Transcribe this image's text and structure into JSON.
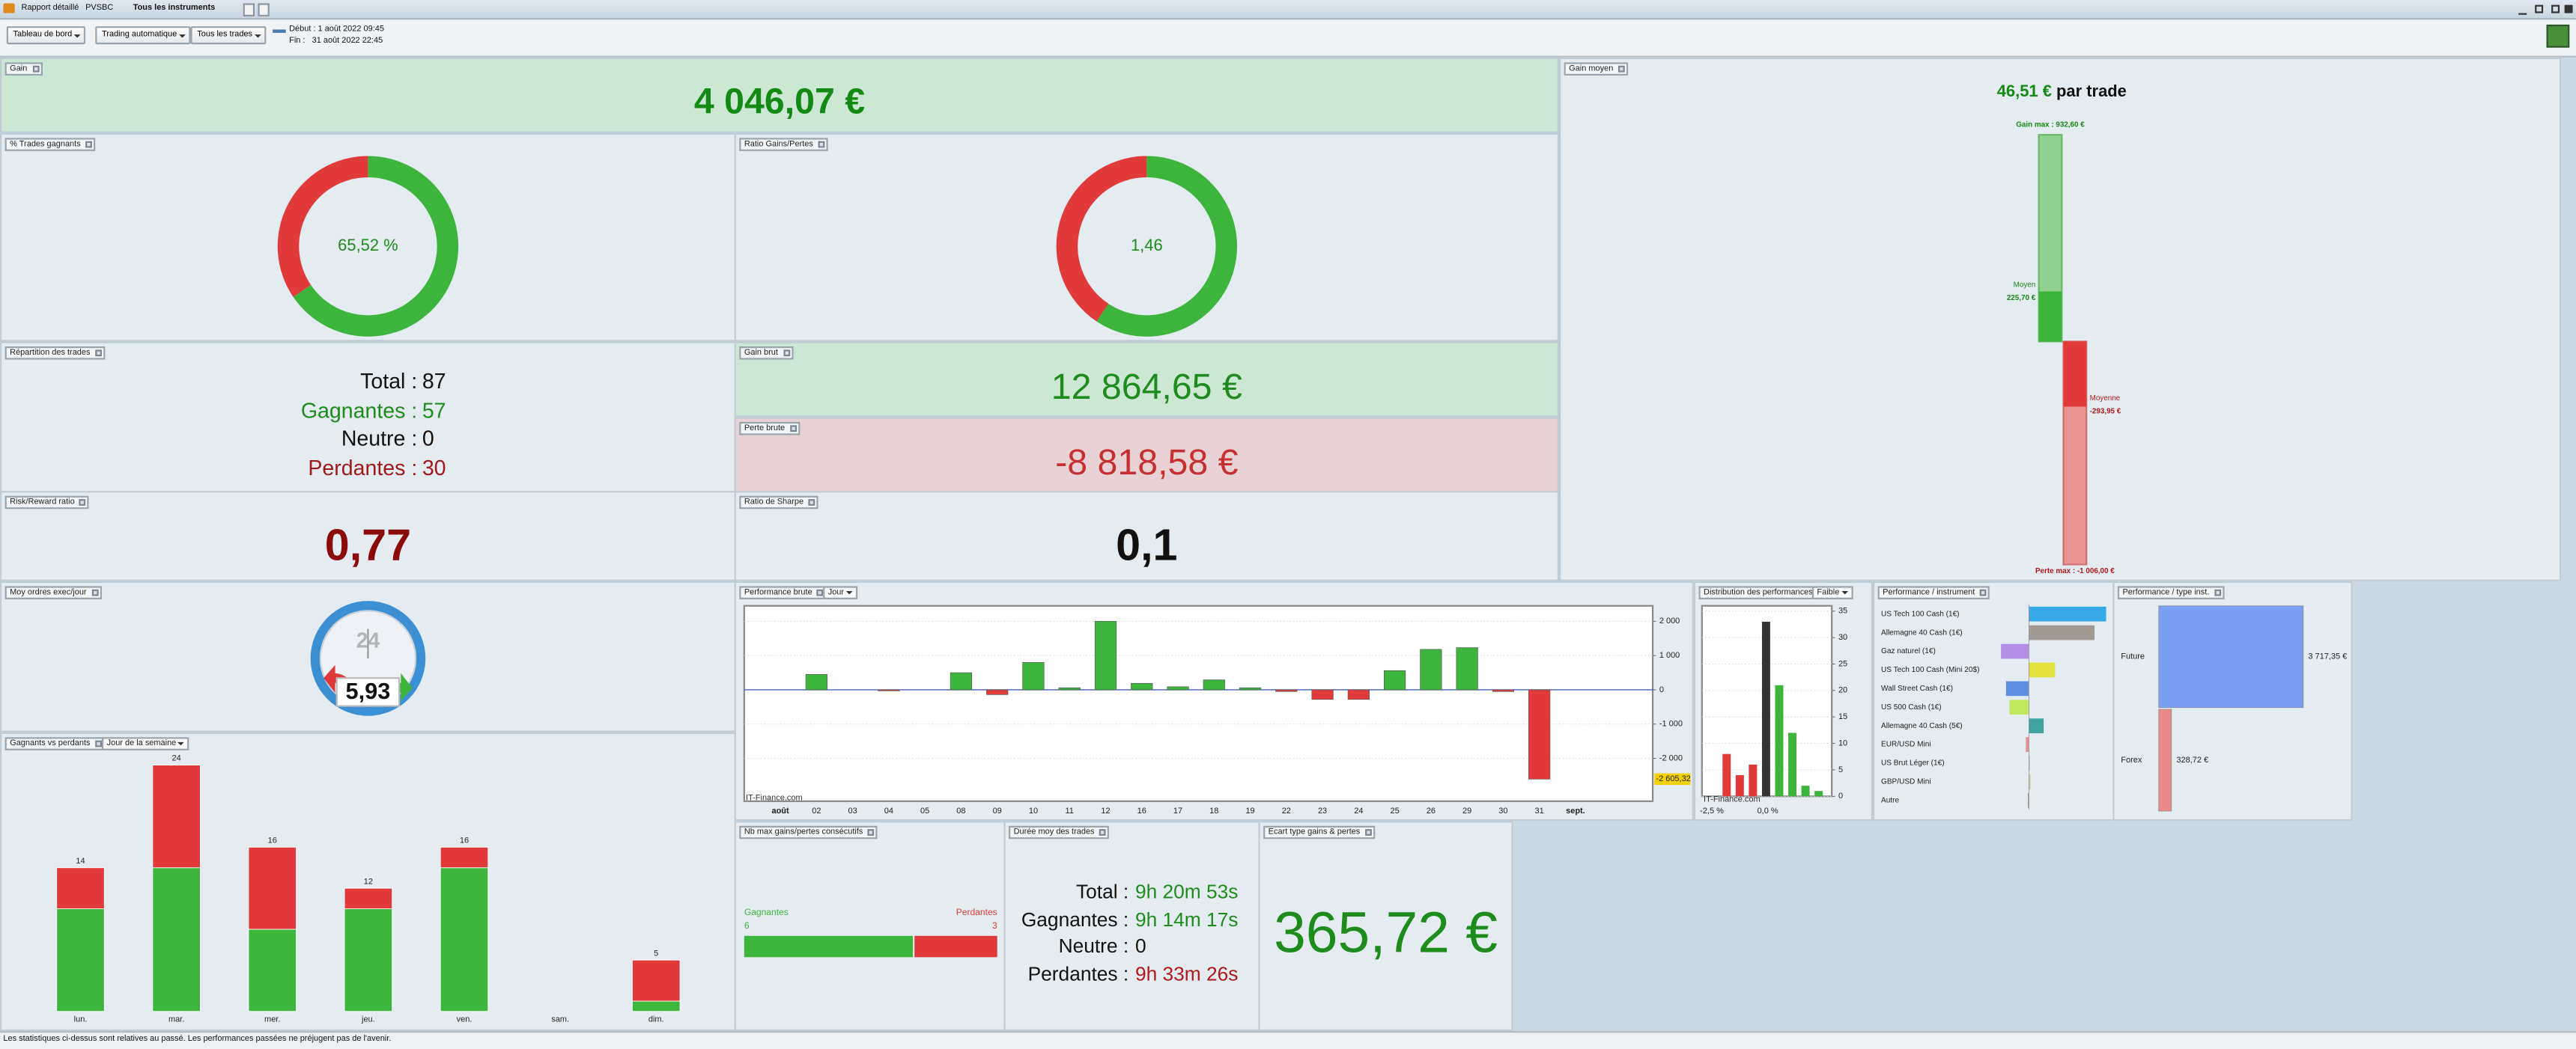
{
  "window": {
    "tabs": [
      "Rapport détaillé",
      "PVSBC",
      "Tous les instruments"
    ]
  },
  "toolbar": {
    "dropdowns": [
      "Tableau de bord",
      "Trading automatique",
      "Tous les trades"
    ],
    "start": "Début : 1 août 2022 09:45",
    "end": "Fin :   31 août 2022 22:45"
  },
  "panels": {
    "gain": {
      "title": "Gain",
      "value": "4 046,07 €"
    },
    "win_rate": {
      "title": "% Trades gagnants",
      "type": "donut",
      "value": 65.52,
      "label": "65,52 %"
    },
    "gain_loss_ratio": {
      "title": "Ratio Gains/Pertes",
      "type": "donut",
      "value": 1.46,
      "label": "1,46"
    },
    "breakdown": {
      "title": "Répartition des trades",
      "rows": [
        {
          "label": "Total :",
          "value": "87"
        },
        {
          "label": "Gagnantes :",
          "value": "57"
        },
        {
          "label": "Neutre :",
          "value": "0"
        },
        {
          "label": "Perdantes :",
          "value": "30"
        }
      ]
    },
    "gross_gain": {
      "title": "Gain brut",
      "value": "12 864,65 €"
    },
    "gross_loss": {
      "title": "Perte brute",
      "value": "-8 818,58 €"
    },
    "risk_reward": {
      "title": "Risk/Reward ratio",
      "value": "0,77"
    },
    "sharpe": {
      "title": "Ratio de Sharpe",
      "value": "0,1"
    },
    "avg_gain": {
      "title": "Gain moyen",
      "type": "range-bar",
      "headline": "46,51 €",
      "headline_suffix": "par trade",
      "max_gain": {
        "value": 932.6,
        "label": "Gain max : 932,60 €"
      },
      "avg_win": {
        "name": "Moyen",
        "value": 225.7,
        "label": "225,70 €"
      },
      "avg_loss": {
        "name": "Moyenne",
        "value": -293.95,
        "label": "-293,95 €"
      },
      "max_loss": {
        "value": -1006,
        "label": "Perte max : -1 006,00 €"
      }
    },
    "orders_per_day": {
      "title": "Moy ordres exec/jour",
      "value": "5,93",
      "clock": "24"
    },
    "weekday": {
      "title": "Gagnants vs perdants",
      "dropdown": "Jour de la semaine",
      "type": "stacked-bar",
      "categories": [
        "lun.",
        "mar.",
        "mer.",
        "jeu.",
        "ven.",
        "sam.",
        "dim."
      ],
      "series": [
        {
          "color": "#3db53d",
          "values": [
            10,
            14,
            8,
            10,
            14,
            0,
            1
          ]
        },
        {
          "color": "#e03a3a",
          "values": [
            4,
            10,
            8,
            2,
            2,
            0,
            4
          ]
        }
      ],
      "total_labels": [
        14,
        24,
        16,
        12,
        16,
        null,
        5
      ]
    },
    "perf_daily": {
      "title": "Performance brute",
      "dropdown": "Jour",
      "type": "bar",
      "categories": [
        "août",
        "02",
        "03",
        "04",
        "05",
        "08",
        "09",
        "10",
        "11",
        "12",
        "16",
        "17",
        "18",
        "19",
        "22",
        "23",
        "24",
        "25",
        "26",
        "29",
        "30",
        "31",
        "sept."
      ],
      "values": [
        null,
        450,
        null,
        -30,
        null,
        500,
        -140,
        800,
        60,
        2000,
        190,
        90,
        290,
        60,
        -50,
        -280,
        -280,
        560,
        1180,
        1230,
        -50,
        -2605.32,
        null
      ],
      "value_labels": [
        null,
        null,
        null,
        null,
        null,
        null,
        null,
        null,
        null,
        null,
        null,
        null,
        null,
        null,
        null,
        null,
        null,
        null,
        null,
        null,
        null,
        "-2 605,32",
        null
      ],
      "colors": {
        "positive": "#3db53d",
        "negative": "#e03a3a"
      },
      "ylim": [
        -3250,
        2450
      ],
      "yticks": [
        {
          "value": 2000,
          "label": "2 000"
        },
        {
          "value": 1000,
          "label": "1 000"
        },
        0,
        {
          "value": -1000,
          "label": "-1 000"
        },
        {
          "value": -2000,
          "label": "-2 000"
        }
      ],
      "grid": true,
      "watermark": "IT-Finance.com"
    },
    "distribution": {
      "title": "Distribution des performances",
      "dropdown": "Faible",
      "type": "bar",
      "values": [
        8,
        4,
        6,
        33,
        21,
        12,
        2,
        1
      ],
      "colors": [
        "#e03a3a",
        "#e03a3a",
        "#e03a3a",
        "#333333",
        "#3db53d",
        "#3db53d",
        "#3db53d",
        "#3db53d"
      ],
      "x_labels": [
        "-2,5 %",
        "0,0 %"
      ],
      "ylim": [
        0,
        36
      ],
      "yticks": [
        0,
        5,
        10,
        15,
        20,
        25,
        30,
        35
      ],
      "grid": true,
      "watermark": "IT-Finance.com"
    },
    "perf_instrument": {
      "title": "Performance / instrument",
      "type": "hbar",
      "categories": [
        "US Tech 100 Cash (1€)",
        "Allemagne 40 Cash (1€)",
        "Gaz naturel (1€)",
        "US Tech 100 Cash (Mini 20$)",
        "Wall Street Cash (1€)",
        "US 500 Cash (1€)",
        "Allemagne 40 Cash (5€)",
        "EUR/USD Mini",
        "US Brut Léger (1€)",
        "GBP/USD Mini",
        "Autre"
      ],
      "values": [
        1990,
        1690,
        -720,
        675,
        -590,
        -500,
        380,
        -80,
        30,
        40,
        -20
      ],
      "colors": [
        "#36a9e6",
        "#a09a93",
        "#b48fe6",
        "#e2e23e",
        "#5f8fe0",
        "#c2e85f",
        "#3fa3a0",
        "#e68f8f",
        "#b0c8e8",
        "#d0c8a0",
        "#7a5a30"
      ]
    },
    "perf_type": {
      "title": "Performance / type inst.",
      "type": "hbar",
      "categories": [
        "Future",
        "Forex"
      ],
      "values": [
        3717.35,
        328.72
      ],
      "value_labels": [
        "3 717,35 €",
        "328,72 €"
      ],
      "colors": [
        "#7a9ff0",
        "#e88a8a"
      ]
    },
    "consecutive": {
      "title": "Nb max gains/pertes consécutifs",
      "type": "split-bar",
      "wins": {
        "name": "Gagnantes",
        "value": 6,
        "color": "#3db53d"
      },
      "losses": {
        "name": "Perdantes",
        "value": 3,
        "color": "#e03a3a"
      }
    },
    "duration": {
      "title": "Durée moy des trades",
      "rows": [
        {
          "label": "Total :",
          "value": "9h 20m 53s"
        },
        {
          "label": "Gagnantes :",
          "value": "9h 14m 17s"
        },
        {
          "label": "Neutre :",
          "value": "0"
        },
        {
          "label": "Perdantes :",
          "value": "9h 33m 26s"
        }
      ]
    },
    "std_dev": {
      "title": "Ecart type gains & pertes",
      "value": "365,72 €"
    }
  },
  "footer": "Les statistiques ci-dessus sont relatives au passé. Les performances passées ne préjugent pas de l'avenir."
}
